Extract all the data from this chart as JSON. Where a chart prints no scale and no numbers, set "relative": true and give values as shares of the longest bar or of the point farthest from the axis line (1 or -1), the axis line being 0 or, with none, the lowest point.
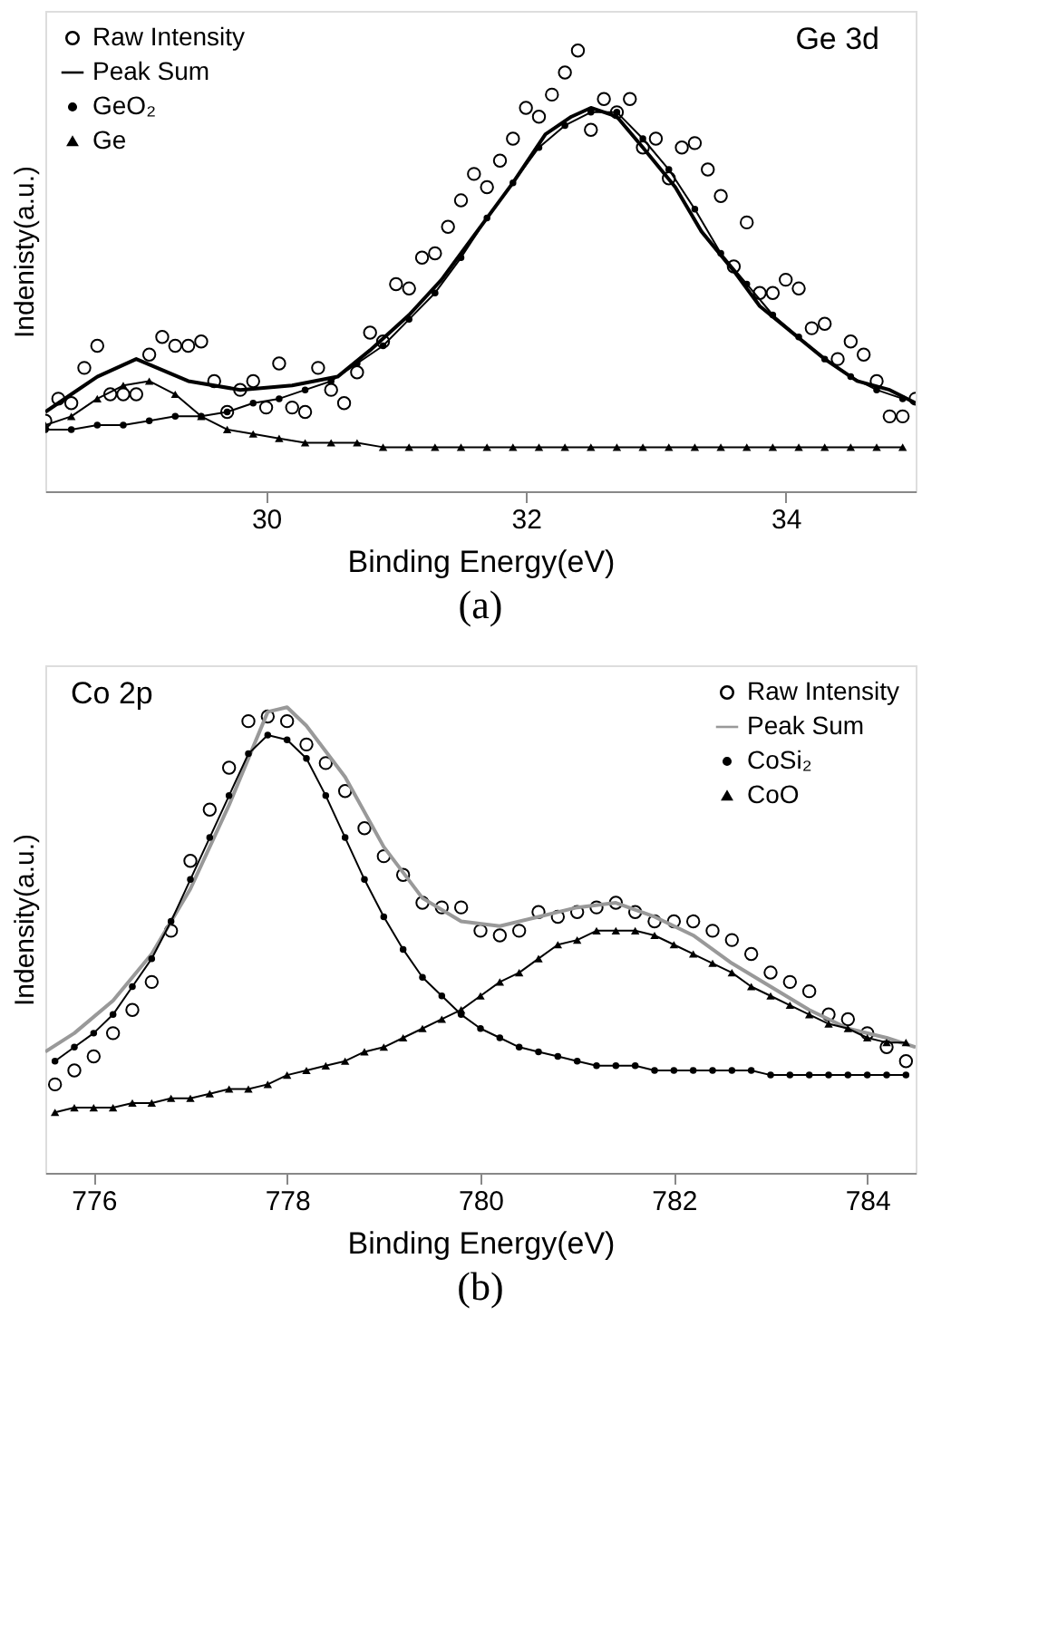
{
  "chart_data": [
    {
      "type": "line",
      "relative": true,
      "xlabel": "Binding Energy(eV)",
      "ylabel": "Indenisty(a.u.)",
      "xlim": [
        28.3,
        35.0
      ],
      "xticks": [
        30,
        32,
        34
      ],
      "legend": "top left",
      "annotations": [
        "Ge 3d",
        "(a)"
      ],
      "series": [
        {
          "name": "Raw Intensity",
          "type": "scatter",
          "marker": "circle",
          "color": "#000000",
          "x": [
            28.3,
            28.4,
            28.5,
            28.6,
            28.7,
            28.8,
            28.9,
            29.0,
            29.1,
            29.2,
            29.3,
            29.4,
            29.5,
            29.6,
            29.7,
            29.8,
            29.9,
            30.0,
            30.1,
            30.2,
            30.3,
            30.4,
            30.5,
            30.6,
            30.7,
            30.8,
            30.9,
            31.0,
            31.1,
            31.2,
            31.3,
            31.4,
            31.5,
            31.6,
            31.7,
            31.8,
            31.9,
            32.0,
            32.1,
            32.2,
            32.3,
            32.4,
            32.5,
            32.6,
            32.7,
            32.8,
            32.9,
            33.0,
            33.1,
            33.2,
            33.3,
            33.4,
            33.5,
            33.6,
            33.7,
            33.8,
            33.9,
            34.0,
            34.1,
            34.2,
            34.3,
            34.4,
            34.5,
            34.6,
            34.7,
            34.8,
            34.9,
            35.0
          ],
          "values": [
            0.16,
            0.21,
            0.2,
            0.28,
            0.33,
            0.22,
            0.22,
            0.22,
            0.31,
            0.35,
            0.33,
            0.33,
            0.34,
            0.25,
            0.18,
            0.23,
            0.25,
            0.19,
            0.29,
            0.19,
            0.18,
            0.28,
            0.23,
            0.2,
            0.27,
            0.36,
            0.34,
            0.47,
            0.46,
            0.53,
            0.54,
            0.6,
            0.66,
            0.72,
            0.69,
            0.75,
            0.8,
            0.87,
            0.85,
            0.9,
            0.95,
            1.0,
            0.82,
            0.89,
            0.86,
            0.89,
            0.78,
            0.8,
            0.71,
            0.78,
            0.79,
            0.73,
            0.67,
            0.51,
            0.61,
            0.45,
            0.45,
            0.48,
            0.46,
            0.37,
            0.38,
            0.3,
            0.34,
            0.31,
            0.25,
            0.17,
            0.17,
            0.21
          ]
        },
        {
          "name": "Peak Sum",
          "marker": "none",
          "color": "#000000",
          "x": [
            28.3,
            28.5,
            28.7,
            29.0,
            29.4,
            29.8,
            30.2,
            30.55,
            30.8,
            31.1,
            31.35,
            31.6,
            31.9,
            32.15,
            32.35,
            32.5,
            32.7,
            32.9,
            33.15,
            33.35,
            33.6,
            33.8,
            34.05,
            34.3,
            34.55,
            34.8,
            35.0
          ],
          "values": [
            0.18,
            0.22,
            0.26,
            0.3,
            0.25,
            0.23,
            0.24,
            0.26,
            0.32,
            0.4,
            0.48,
            0.58,
            0.7,
            0.81,
            0.85,
            0.87,
            0.85,
            0.78,
            0.69,
            0.59,
            0.5,
            0.42,
            0.36,
            0.3,
            0.25,
            0.23,
            0.2
          ]
        },
        {
          "name": "GeO₂",
          "marker": "circle",
          "color": "#000000",
          "x": [
            28.3,
            28.5,
            28.7,
            28.9,
            29.1,
            29.3,
            29.5,
            29.7,
            29.9,
            30.1,
            30.3,
            30.5,
            30.7,
            30.9,
            31.1,
            31.3,
            31.5,
            31.7,
            31.9,
            32.1,
            32.3,
            32.5,
            32.7,
            32.9,
            33.1,
            33.3,
            33.5,
            33.7,
            33.9,
            34.1,
            34.3,
            34.5,
            34.7,
            34.9
          ],
          "values": [
            0.14,
            0.14,
            0.15,
            0.15,
            0.16,
            0.17,
            0.17,
            0.18,
            0.2,
            0.21,
            0.23,
            0.25,
            0.29,
            0.33,
            0.39,
            0.45,
            0.53,
            0.62,
            0.7,
            0.78,
            0.83,
            0.86,
            0.86,
            0.8,
            0.73,
            0.64,
            0.54,
            0.47,
            0.4,
            0.35,
            0.3,
            0.26,
            0.23,
            0.21
          ]
        },
        {
          "name": "Ge",
          "marker": "triangle",
          "color": "#000000",
          "x": [
            28.3,
            28.5,
            28.7,
            28.9,
            29.1,
            29.3,
            29.5,
            29.7,
            29.9,
            30.1,
            30.3,
            30.5,
            30.7,
            30.9,
            31.1,
            31.3,
            31.5,
            31.7,
            31.9,
            32.1,
            32.3,
            32.5,
            32.7,
            32.9,
            33.1,
            33.3,
            33.5,
            33.7,
            33.9,
            34.1,
            34.3,
            34.5,
            34.7,
            34.9
          ],
          "values": [
            0.15,
            0.17,
            0.21,
            0.24,
            0.25,
            0.22,
            0.17,
            0.14,
            0.13,
            0.12,
            0.11,
            0.11,
            0.11,
            0.1,
            0.1,
            0.1,
            0.1,
            0.1,
            0.1,
            0.1,
            0.1,
            0.1,
            0.1,
            0.1,
            0.1,
            0.1,
            0.1,
            0.1,
            0.1,
            0.1,
            0.1,
            0.1,
            0.1,
            0.1
          ]
        }
      ]
    },
    {
      "type": "line",
      "relative": true,
      "xlabel": "Binding Energy(eV)",
      "ylabel": "Indensity(a.u.)",
      "xlim": [
        775.5,
        784.5
      ],
      "xticks": [
        776,
        778,
        780,
        782,
        784
      ],
      "legend": "top right",
      "annotations": [
        "Co 2p",
        "(b)"
      ],
      "series": [
        {
          "name": "Raw Intensity",
          "type": "scatter",
          "marker": "circle",
          "color": "#000000",
          "x": [
            775.6,
            775.8,
            776.0,
            776.2,
            776.4,
            776.6,
            776.8,
            777.0,
            777.2,
            777.4,
            777.6,
            777.8,
            778.0,
            778.2,
            778.4,
            778.6,
            778.8,
            779.0,
            779.2,
            779.4,
            779.6,
            779.8,
            780.0,
            780.2,
            780.4,
            780.6,
            780.8,
            781.0,
            781.2,
            781.4,
            781.6,
            781.8,
            782.0,
            782.2,
            782.4,
            782.6,
            782.8,
            783.0,
            783.2,
            783.4,
            783.6,
            783.8,
            784.0,
            784.2,
            784.4
          ],
          "values": [
            0.19,
            0.22,
            0.25,
            0.3,
            0.35,
            0.41,
            0.52,
            0.67,
            0.78,
            0.87,
            0.97,
            0.98,
            0.97,
            0.92,
            0.88,
            0.82,
            0.74,
            0.68,
            0.64,
            0.58,
            0.57,
            0.57,
            0.52,
            0.51,
            0.52,
            0.56,
            0.55,
            0.56,
            0.57,
            0.58,
            0.56,
            0.54,
            0.54,
            0.54,
            0.52,
            0.5,
            0.47,
            0.43,
            0.41,
            0.39,
            0.34,
            0.33,
            0.3,
            0.27,
            0.24
          ]
        },
        {
          "name": "Peak Sum",
          "marker": "none",
          "color": "#999999",
          "x": [
            775.5,
            775.8,
            776.2,
            776.6,
            777.0,
            777.4,
            777.8,
            778.0,
            778.2,
            778.6,
            779.0,
            779.4,
            779.8,
            780.2,
            780.6,
            781.0,
            781.4,
            781.8,
            782.2,
            782.6,
            783.0,
            783.4,
            783.8,
            784.2,
            784.5
          ],
          "values": [
            0.26,
            0.3,
            0.37,
            0.47,
            0.61,
            0.79,
            0.99,
            1.0,
            0.96,
            0.85,
            0.7,
            0.59,
            0.54,
            0.53,
            0.55,
            0.57,
            0.58,
            0.55,
            0.51,
            0.45,
            0.4,
            0.35,
            0.31,
            0.29,
            0.27
          ]
        },
        {
          "name": "CoSi₂",
          "marker": "circle",
          "color": "#000000",
          "x": [
            775.6,
            775.8,
            776.0,
            776.2,
            776.4,
            776.6,
            776.8,
            777.0,
            777.2,
            777.4,
            777.6,
            777.8,
            778.0,
            778.2,
            778.4,
            778.6,
            778.8,
            779.0,
            779.2,
            779.4,
            779.6,
            779.8,
            780.0,
            780.2,
            780.4,
            780.6,
            780.8,
            781.0,
            781.2,
            781.4,
            781.6,
            781.8,
            782.0,
            782.2,
            782.4,
            782.6,
            782.8,
            783.0,
            783.2,
            783.4,
            783.6,
            783.8,
            784.0,
            784.2,
            784.4
          ],
          "values": [
            0.24,
            0.27,
            0.3,
            0.34,
            0.4,
            0.46,
            0.54,
            0.63,
            0.72,
            0.81,
            0.9,
            0.94,
            0.93,
            0.89,
            0.81,
            0.72,
            0.63,
            0.55,
            0.48,
            0.42,
            0.38,
            0.34,
            0.31,
            0.29,
            0.27,
            0.26,
            0.25,
            0.24,
            0.23,
            0.23,
            0.23,
            0.22,
            0.22,
            0.22,
            0.22,
            0.22,
            0.22,
            0.21,
            0.21,
            0.21,
            0.21,
            0.21,
            0.21,
            0.21,
            0.21
          ]
        },
        {
          "name": "CoO",
          "marker": "triangle",
          "color": "#000000",
          "x": [
            775.6,
            775.8,
            776.0,
            776.2,
            776.4,
            776.6,
            776.8,
            777.0,
            777.2,
            777.4,
            777.6,
            777.8,
            778.0,
            778.2,
            778.4,
            778.6,
            778.8,
            779.0,
            779.2,
            779.4,
            779.6,
            779.8,
            780.0,
            780.2,
            780.4,
            780.6,
            780.8,
            781.0,
            781.2,
            781.4,
            781.6,
            781.8,
            782.0,
            782.2,
            782.4,
            782.6,
            782.8,
            783.0,
            783.2,
            783.4,
            783.6,
            783.8,
            784.0,
            784.2,
            784.4
          ],
          "values": [
            0.13,
            0.14,
            0.14,
            0.14,
            0.15,
            0.15,
            0.16,
            0.16,
            0.17,
            0.18,
            0.18,
            0.19,
            0.21,
            0.22,
            0.23,
            0.24,
            0.26,
            0.27,
            0.29,
            0.31,
            0.33,
            0.35,
            0.38,
            0.41,
            0.43,
            0.46,
            0.49,
            0.5,
            0.52,
            0.52,
            0.52,
            0.51,
            0.49,
            0.47,
            0.45,
            0.43,
            0.4,
            0.38,
            0.36,
            0.34,
            0.32,
            0.31,
            0.29,
            0.28,
            0.28
          ]
        }
      ]
    }
  ]
}
